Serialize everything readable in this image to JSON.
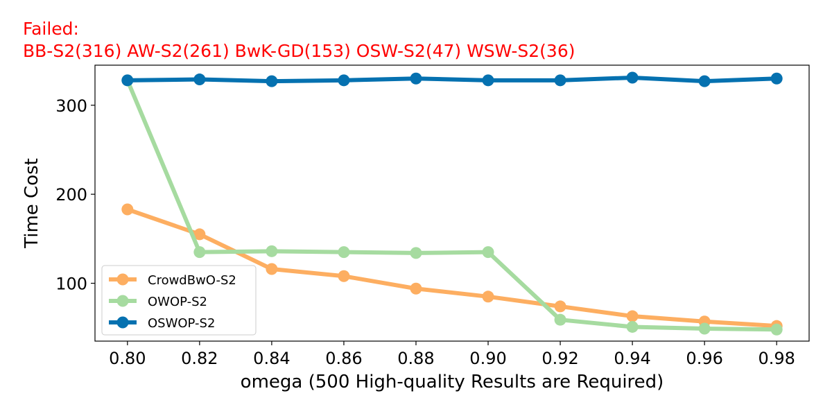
{
  "header": {
    "failed_label": "Failed:",
    "failed_list": "BB-S2(316) AW-S2(261) BwK-GD(153) OSW-S2(47) WSW-S2(36)",
    "color": "#ff0000"
  },
  "chart_data": {
    "type": "line",
    "xlabel": "omega (500 High-quality Results are Required)",
    "ylabel": "Time Cost",
    "x": [
      0.8,
      0.82,
      0.84,
      0.86,
      0.88,
      0.9,
      0.92,
      0.94,
      0.96,
      0.98
    ],
    "x_tick_labels": [
      "0.80",
      "0.82",
      "0.84",
      "0.86",
      "0.88",
      "0.90",
      "0.92",
      "0.94",
      "0.96",
      "0.98"
    ],
    "y_ticks": [
      100,
      200,
      300
    ],
    "xlim": [
      0.791,
      0.989
    ],
    "ylim": [
      35,
      345
    ],
    "grid": false,
    "legend_position": "lower left",
    "series": [
      {
        "name": "CrowdBwO-S2",
        "color": "#fdae61",
        "values": [
          183,
          155,
          116,
          108,
          94,
          85,
          74,
          63,
          57,
          52
        ]
      },
      {
        "name": "OWOP-S2",
        "color": "#a6dba0",
        "values": [
          328,
          135,
          136,
          135,
          134,
          135,
          59,
          51,
          49,
          48
        ]
      },
      {
        "name": "OSWOP-S2",
        "color": "#0571b0",
        "values": [
          328,
          329,
          327,
          328,
          330,
          328,
          328,
          331,
          327,
          330
        ]
      }
    ]
  }
}
